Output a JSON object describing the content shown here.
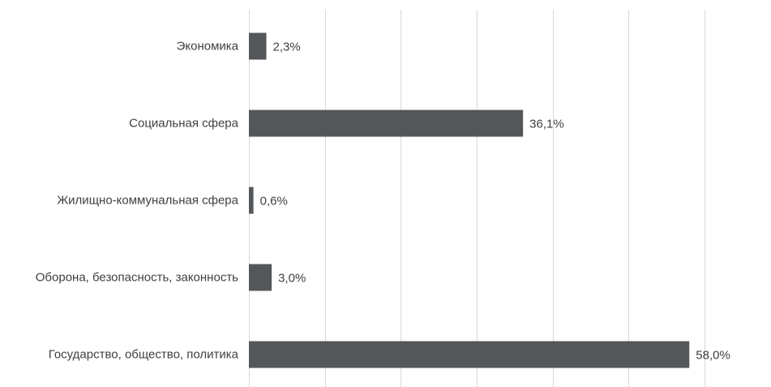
{
  "chart_data": {
    "type": "bar",
    "orientation": "horizontal",
    "categories": [
      "Экономика",
      "Социальная сфера",
      "Жилищно-коммунальная сфера",
      "Оборона, безопасность, законность",
      "Государство, общество, политика"
    ],
    "values": [
      2.3,
      36.1,
      0.6,
      3.0,
      58.0
    ],
    "value_labels": [
      "2,3%",
      "36,1%",
      "0,6%",
      "3,0%",
      "58,0%"
    ],
    "unit": "%",
    "xlim": [
      0,
      60
    ],
    "gridlines": "vertical",
    "grid_step": 10,
    "legend": "none",
    "title": "",
    "xlabel": "",
    "ylabel": "",
    "colors": {
      "bar": "#54575a",
      "grid": "#d9d9d9",
      "text": "#404040"
    }
  }
}
